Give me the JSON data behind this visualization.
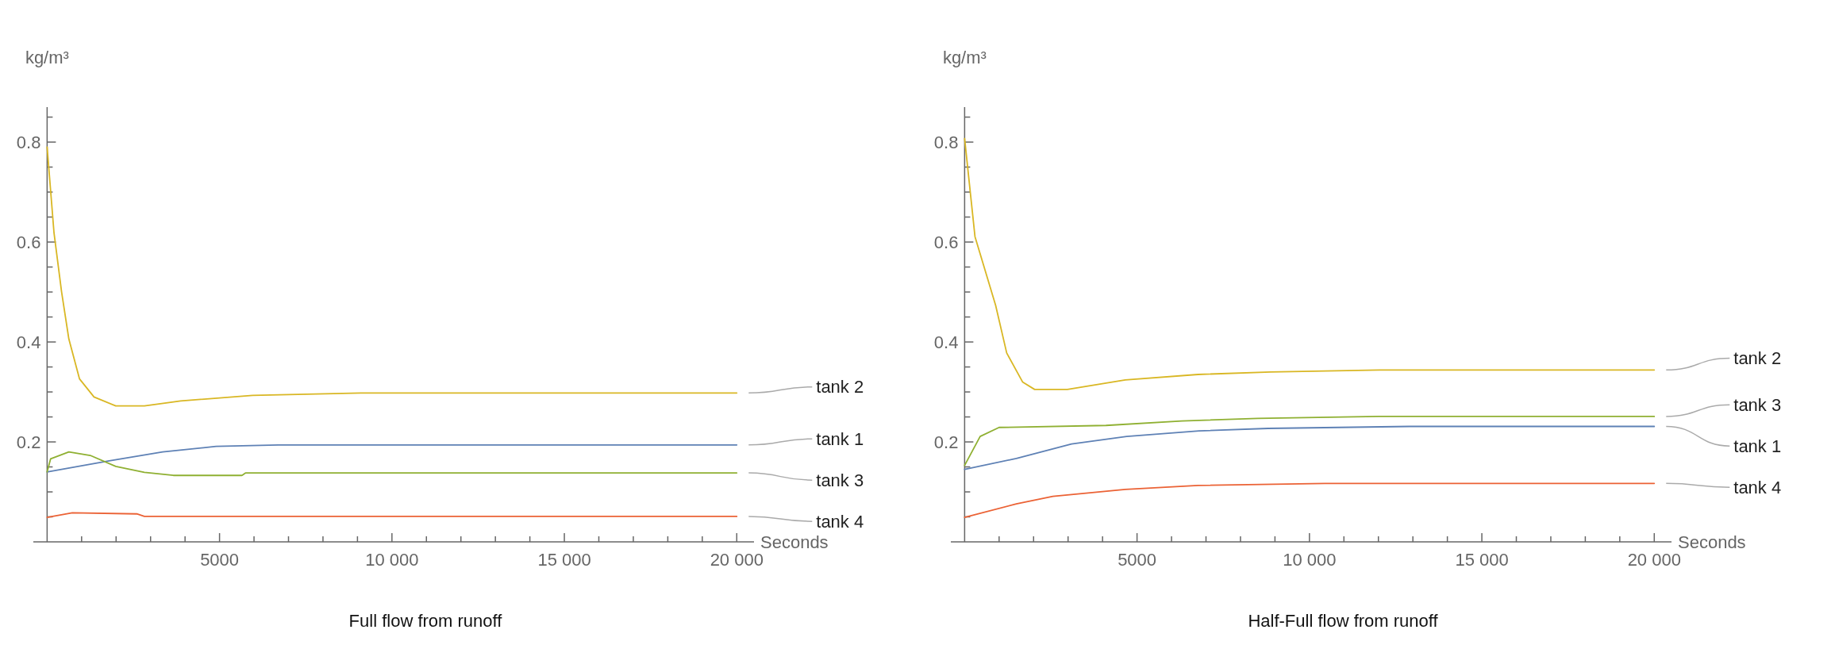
{
  "chart_data": [
    {
      "type": "line",
      "title": "Full flow from runoff",
      "xlabel": "Seconds",
      "ylabel": "kg/m³",
      "xlim": [
        -400,
        20500
      ],
      "ylim": [
        0,
        0.87
      ],
      "xticks": [
        {
          "value": 1000,
          "label": null
        },
        {
          "value": 2000,
          "label": null
        },
        {
          "value": 3000,
          "label": null
        },
        {
          "value": 4000,
          "label": null
        },
        5000,
        {
          "value": 6000,
          "label": null
        },
        {
          "value": 7000,
          "label": null
        },
        {
          "value": 8000,
          "label": null
        },
        {
          "value": 9000,
          "label": null
        },
        {
          "value": 10000,
          "label": "10 000"
        },
        {
          "value": 11000,
          "label": null
        },
        {
          "value": 12000,
          "label": null
        },
        {
          "value": 13000,
          "label": null
        },
        {
          "value": 14000,
          "label": null
        },
        {
          "value": 15000,
          "label": "15 000"
        },
        {
          "value": 16000,
          "label": null
        },
        {
          "value": 17000,
          "label": null
        },
        {
          "value": 18000,
          "label": null
        },
        {
          "value": 19000,
          "label": null
        },
        {
          "value": 20000,
          "label": "20 000"
        }
      ],
      "yticks": [
        {
          "value": 0.05,
          "label": null
        },
        {
          "value": 0.1,
          "label": null
        },
        {
          "value": 0.15,
          "label": null
        },
        0.2,
        {
          "value": 0.25,
          "label": null
        },
        {
          "value": 0.3,
          "label": null
        },
        {
          "value": 0.35,
          "label": null
        },
        0.4,
        {
          "value": 0.45,
          "label": null
        },
        {
          "value": 0.5,
          "label": null
        },
        {
          "value": 0.55,
          "label": null
        },
        0.6,
        {
          "value": 0.65,
          "label": null
        },
        {
          "value": 0.7,
          "label": null
        },
        {
          "value": 0.75,
          "label": null
        },
        0.8,
        {
          "value": 0.85,
          "label": null
        }
      ],
      "series": [
        {
          "name": "tank 1",
          "color": "#5e81b5",
          "x": [
            0,
            1800,
            3350,
            4900,
            6700,
            20000
          ],
          "values": [
            0.14,
            0.162,
            0.18,
            0.191,
            0.194,
            0.194
          ]
        },
        {
          "name": "tank 2",
          "color": "#d9b724",
          "x": [
            0,
            200,
            420,
            630,
            940,
            1360,
            1990,
            2820,
            3870,
            5960,
            9100,
            20000
          ],
          "values": [
            0.79,
            0.618,
            0.5,
            0.406,
            0.326,
            0.29,
            0.272,
            0.272,
            0.282,
            0.293,
            0.298,
            0.298
          ]
        },
        {
          "name": "tank 3",
          "color": "#8fb032",
          "x": [
            0,
            100,
            630,
            1250,
            1990,
            2820,
            3660,
            5650,
            5760,
            20000
          ],
          "values": [
            0.14,
            0.166,
            0.18,
            0.173,
            0.151,
            0.139,
            0.133,
            0.133,
            0.138,
            0.138
          ]
        },
        {
          "name": "tank 4",
          "color": "#eb6235",
          "x": [
            0,
            730,
            2600,
            2820,
            20000
          ],
          "values": [
            0.049,
            0.058,
            0.056,
            0.051,
            0.051
          ]
        }
      ]
    },
    {
      "type": "line",
      "title": "Half-Full flow from runoff",
      "xlabel": "Seconds",
      "ylabel": "kg/m³",
      "xlim": [
        -400,
        20500
      ],
      "ylim": [
        0,
        0.87
      ],
      "xticks": [
        {
          "value": 1000,
          "label": null
        },
        {
          "value": 2000,
          "label": null
        },
        {
          "value": 3000,
          "label": null
        },
        {
          "value": 4000,
          "label": null
        },
        5000,
        {
          "value": 6000,
          "label": null
        },
        {
          "value": 7000,
          "label": null
        },
        {
          "value": 8000,
          "label": null
        },
        {
          "value": 9000,
          "label": null
        },
        {
          "value": 10000,
          "label": "10 000"
        },
        {
          "value": 11000,
          "label": null
        },
        {
          "value": 12000,
          "label": null
        },
        {
          "value": 13000,
          "label": null
        },
        {
          "value": 14000,
          "label": null
        },
        {
          "value": 15000,
          "label": "15 000"
        },
        {
          "value": 16000,
          "label": null
        },
        {
          "value": 17000,
          "label": null
        },
        {
          "value": 18000,
          "label": null
        },
        {
          "value": 19000,
          "label": null
        },
        {
          "value": 20000,
          "label": "20 000"
        }
      ],
      "yticks": [
        {
          "value": 0.05,
          "label": null
        },
        {
          "value": 0.1,
          "label": null
        },
        {
          "value": 0.15,
          "label": null
        },
        0.2,
        {
          "value": 0.25,
          "label": null
        },
        {
          "value": 0.3,
          "label": null
        },
        {
          "value": 0.35,
          "label": null
        },
        0.4,
        {
          "value": 0.45,
          "label": null
        },
        {
          "value": 0.5,
          "label": null
        },
        {
          "value": 0.55,
          "label": null
        },
        0.6,
        {
          "value": 0.65,
          "label": null
        },
        {
          "value": 0.7,
          "label": null
        },
        {
          "value": 0.75,
          "label": null
        },
        0.8,
        {
          "value": 0.85,
          "label": null
        }
      ],
      "series": [
        {
          "name": "tank 1",
          "color": "#5e81b5",
          "x": [
            0,
            1500,
            3100,
            4700,
            6800,
            8800,
            12900,
            20000
          ],
          "values": [
            0.145,
            0.167,
            0.196,
            0.211,
            0.222,
            0.227,
            0.231,
            0.231
          ]
        },
        {
          "name": "tank 2",
          "color": "#d9b724",
          "x": [
            0,
            300,
            900,
            1220,
            1680,
            2030,
            2980,
            4660,
            6770,
            8870,
            12030,
            20000
          ],
          "values": [
            0.807,
            0.611,
            0.473,
            0.378,
            0.32,
            0.305,
            0.305,
            0.324,
            0.335,
            0.34,
            0.344,
            0.344
          ]
        },
        {
          "name": "tank 3",
          "color": "#8fb032",
          "x": [
            0,
            450,
            1000,
            4100,
            6300,
            8500,
            12000,
            20000
          ],
          "values": [
            0.153,
            0.211,
            0.229,
            0.233,
            0.242,
            0.247,
            0.251,
            0.251
          ]
        },
        {
          "name": "tank 4",
          "color": "#eb6235",
          "x": [
            0,
            1500,
            2560,
            4660,
            6770,
            10450,
            20000
          ],
          "values": [
            0.049,
            0.076,
            0.091,
            0.105,
            0.113,
            0.117,
            0.117
          ]
        }
      ]
    }
  ]
}
